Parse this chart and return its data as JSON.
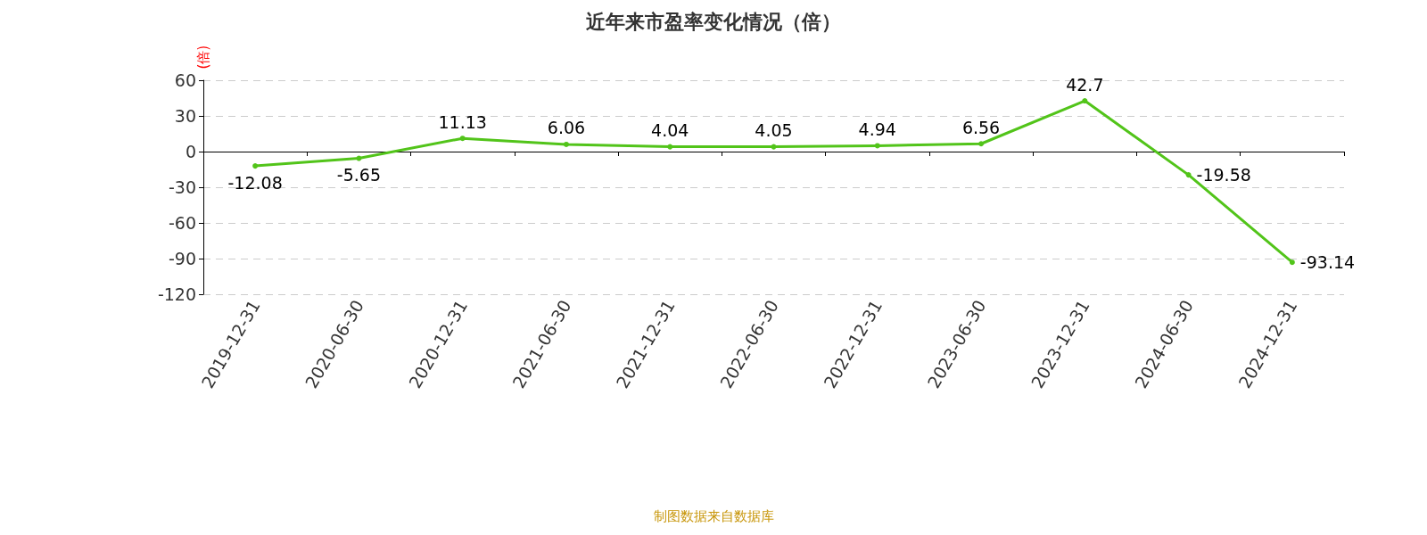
{
  "chart_data": {
    "type": "line",
    "title": "近年来市盈率变化情况（倍）",
    "ylabel": "(倍)",
    "categories": [
      "2019-12-31",
      "2020-06-30",
      "2020-12-31",
      "2021-06-30",
      "2021-12-31",
      "2022-06-30",
      "2022-12-31",
      "2023-06-30",
      "2023-12-31",
      "2024-06-30",
      "2024-12-31"
    ],
    "series": [
      {
        "color": "#52c41a",
        "values": [
          -12.08,
          -5.65,
          11.13,
          6.06,
          4.04,
          4.05,
          4.94,
          6.56,
          42.7,
          -19.58,
          -93.14
        ]
      }
    ],
    "ylim": [
      -120,
      60
    ],
    "yticks": [
      -120,
      -90,
      -60,
      -30,
      0,
      30,
      60
    ],
    "grid": "y",
    "marker": "circle",
    "data_labels": true,
    "annotations": [
      "制图数据来自数据库"
    ]
  }
}
